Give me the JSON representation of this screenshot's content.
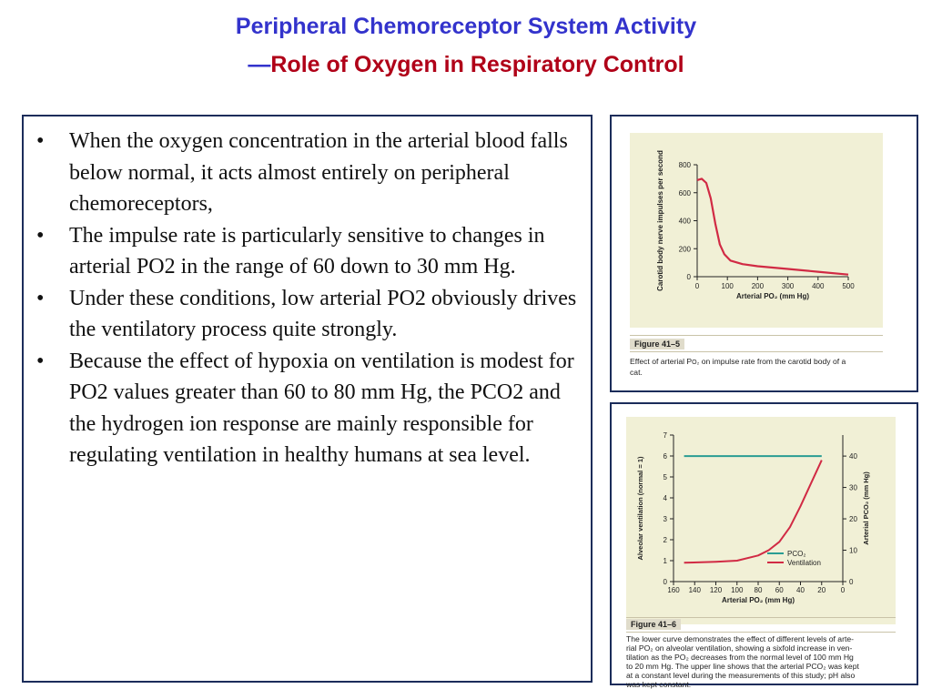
{
  "title": {
    "line1": "Peripheral Chemoreceptor System Activity",
    "dash": "—",
    "line2": "Role of Oxygen in Respiratory Control"
  },
  "bullets": [
    "When the oxygen concentration in the arterial blood falls below normal, it acts almost entirely on peripheral chemoreceptors,",
    "The impulse rate is particularly sensitive to changes in arterial PO2 in the range of 60 down to 30 mm Hg.",
    "Under these conditions, low arterial PO2 obviously drives the ventilatory process quite strongly.",
    "Because the effect of hypoxia on ventilation is modest for PO2 values greater than 60 to 80 mm Hg, the PCO2 and the hydrogen ion response are mainly responsible for regulating ventilation in healthy humans at sea level."
  ],
  "bullet_symbol": "•",
  "figure1": {
    "label": "Figure 41–5",
    "caption_line1": "Effect of arterial P",
    "caption_o2": "O₂",
    "caption_line1b": " on impulse rate from the carotid body of a",
    "caption_line2": "cat.",
    "chart_data": {
      "type": "line",
      "title": "",
      "xlabel": "Arterial PO₂ (mm Hg)",
      "ylabel": "Carotid body nerve impulses per second",
      "xlim": [
        0,
        500
      ],
      "ylim": [
        0,
        800
      ],
      "xticks": [
        "0",
        "100",
        "200",
        "300",
        "400",
        "500"
      ],
      "yticks": [
        "0",
        "200",
        "400",
        "600",
        "800"
      ],
      "series": [
        {
          "name": "",
          "color": "#d12a44",
          "x": [
            0,
            15,
            30,
            45,
            60,
            75,
            90,
            110,
            150,
            200,
            300,
            400,
            500
          ],
          "y": [
            690,
            700,
            670,
            560,
            380,
            230,
            160,
            115,
            90,
            75,
            55,
            35,
            15
          ]
        }
      ]
    }
  },
  "figure2": {
    "label": "Figure 41–6",
    "caption": [
      "The lower curve demonstrates the effect of different levels of arte-",
      "rial PO₂ on alveolar ventilation, showing a sixfold increase in ven-",
      "tilation as the PO₂ decreases from the normal level of 100 mm Hg",
      "to 20 mm Hg. The upper line shows that the arterial PCO₂ was kept",
      "at a constant level during the measurements of this study; pH also",
      "was kept constant."
    ],
    "chart_data": {
      "type": "line",
      "title": "",
      "xlabel": "Arterial PO₂ (mm Hg)",
      "ylabel": "Alveolar ventilation (normal = 1)",
      "y2label": "Arterial PCO₂ (mm Hg)",
      "xlim": [
        160,
        0
      ],
      "ylim": [
        0,
        7
      ],
      "y2lim": [
        0,
        46.7
      ],
      "xticks": [
        "160",
        "140",
        "120",
        "100",
        "80",
        "60",
        "40",
        "20",
        "0"
      ],
      "yticks": [
        "0",
        "1",
        "2",
        "3",
        "4",
        "5",
        "6",
        "7"
      ],
      "y2ticks": [
        "0",
        "10",
        "20",
        "30",
        "40"
      ],
      "legend_position": "bottom-right",
      "series": [
        {
          "name": "PCO₂",
          "color": "#2a9d93",
          "axis": "right",
          "x": [
            150,
            20
          ],
          "y": [
            40,
            40
          ]
        },
        {
          "name": "Ventilation",
          "color": "#d12a44",
          "axis": "left",
          "x": [
            150,
            120,
            100,
            80,
            70,
            60,
            50,
            40,
            30,
            20
          ],
          "y": [
            0.9,
            0.95,
            1.0,
            1.25,
            1.5,
            1.9,
            2.6,
            3.6,
            4.7,
            5.8
          ]
        }
      ]
    }
  }
}
